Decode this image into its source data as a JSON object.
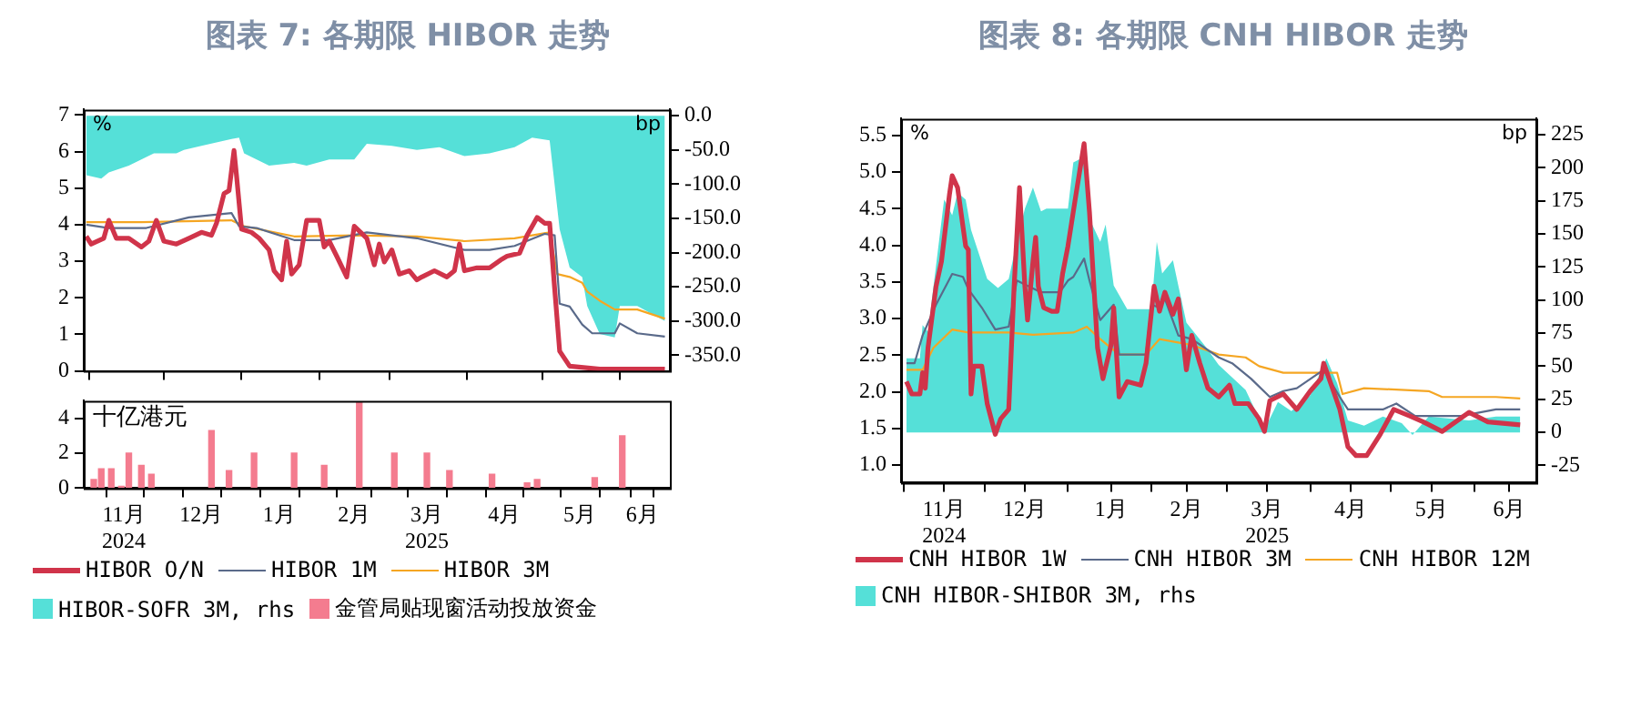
{
  "chart_data": [
    {
      "type": "line",
      "title": "图表 7:  各期限 HIBOR 走势",
      "ylabel": "%",
      "y2label": "bp",
      "xlim": [
        "2024-10-30",
        "2025-06-21"
      ],
      "xticks": [
        "2024-11-01",
        "2024-12-01",
        "2025-01-01",
        "2025-02-01",
        "2025-03-01",
        "2025-04-01",
        "2025-05-01",
        "2025-06-01"
      ],
      "ylim": [
        0,
        7.15
      ],
      "yticks": [
        0,
        1,
        2,
        3,
        4,
        5,
        6,
        7
      ],
      "y2lim": [
        -373,
        9
      ],
      "y2ticks": [
        {
          "value": 0,
          "label": "0.0"
        },
        {
          "value": -50,
          "label": "-50.0"
        },
        {
          "value": -100,
          "label": "-100.0"
        },
        {
          "value": -150,
          "label": "-150.0"
        },
        {
          "value": -200,
          "label": "-200.0"
        },
        {
          "value": -250,
          "label": "-250.0"
        },
        {
          "value": -300,
          "label": "-300.0"
        },
        {
          "value": -350,
          "label": "-350.0"
        }
      ],
      "tick_labels": "y",
      "legend": "bottom",
      "grid": false,
      "marker": "none",
      "series": [
        {
          "name": "HIBOR O/N",
          "color": "#d0344a",
          "x": [
            "2024-10-31",
            "2024-11-02",
            "2024-11-07",
            "2024-11-09",
            "2024-11-12",
            "2024-11-17",
            "2024-11-22",
            "2024-11-25",
            "2024-11-28",
            "2024-12-01",
            "2024-12-06",
            "2024-12-11",
            "2024-12-16",
            "2024-12-20",
            "2024-12-22",
            "2024-12-25",
            "2024-12-27",
            "2024-12-29",
            "2024-12-30",
            "2025-01-01",
            "2025-01-05",
            "2025-01-08",
            "2025-01-12",
            "2025-01-14",
            "2025-01-17",
            "2025-01-19",
            "2025-01-21",
            "2025-01-24",
            "2025-01-27",
            "2025-02-01",
            "2025-02-03",
            "2025-02-05",
            "2025-02-08",
            "2025-02-12",
            "2025-02-15",
            "2025-02-20",
            "2025-02-23",
            "2025-02-25",
            "2025-02-27",
            "2025-03-02",
            "2025-03-05",
            "2025-03-09",
            "2025-03-12",
            "2025-03-14",
            "2025-03-19",
            "2025-03-24",
            "2025-03-27",
            "2025-03-29",
            "2025-03-31",
            "2025-04-05",
            "2025-04-10",
            "2025-04-15",
            "2025-04-17",
            "2025-04-22",
            "2025-04-25",
            "2025-04-29",
            "2025-05-02",
            "2025-05-04",
            "2025-05-06",
            "2025-05-08",
            "2025-05-12",
            "2025-05-24",
            "2025-06-19"
          ],
          "values": [
            3.68,
            3.47,
            3.63,
            4.12,
            3.63,
            3.63,
            3.39,
            3.55,
            4.12,
            3.55,
            3.47,
            3.63,
            3.79,
            3.71,
            4.04,
            4.85,
            4.93,
            6.03,
            5.34,
            3.88,
            3.79,
            3.63,
            3.31,
            2.74,
            2.49,
            3.55,
            2.65,
            2.9,
            4.12,
            4.12,
            3.39,
            3.55,
            3.14,
            2.57,
            3.96,
            3.63,
            2.9,
            3.47,
            2.98,
            3.31,
            2.65,
            2.74,
            2.49,
            2.57,
            2.74,
            2.57,
            2.74,
            3.47,
            2.74,
            2.82,
            2.82,
            3.06,
            3.14,
            3.22,
            3.71,
            4.2,
            4.04,
            4.04,
            2.25,
            0.54,
            0.13,
            0.05,
            0.05
          ]
        },
        {
          "name": "HIBOR 1M",
          "color": "#5a6a8a",
          "x": [
            "2024-10-31",
            "2024-11-09",
            "2024-11-24",
            "2024-12-11",
            "2024-12-28",
            "2024-12-31",
            "2025-01-07",
            "2025-01-22",
            "2025-02-05",
            "2025-02-20",
            "2025-03-12",
            "2025-03-31",
            "2025-04-10",
            "2025-04-20",
            "2025-05-02",
            "2025-05-06",
            "2025-05-08",
            "2025-05-12",
            "2025-05-17",
            "2025-05-21",
            "2025-05-30",
            "2025-06-01",
            "2025-06-08",
            "2025-06-19"
          ],
          "values": [
            4.0,
            3.91,
            3.91,
            4.2,
            4.32,
            3.96,
            3.91,
            3.58,
            3.58,
            3.79,
            3.63,
            3.31,
            3.31,
            3.42,
            3.75,
            3.71,
            1.84,
            1.76,
            1.27,
            1.03,
            1.03,
            1.3,
            1.03,
            0.94
          ]
        },
        {
          "name": "HIBOR 3M",
          "color": "#f5a623",
          "x": [
            "2024-10-31",
            "2024-11-22",
            "2024-12-28",
            "2025-01-02",
            "2025-01-22",
            "2025-02-15",
            "2025-03-12",
            "2025-03-31",
            "2025-04-20",
            "2025-05-04",
            "2025-05-07",
            "2025-05-12",
            "2025-05-17",
            "2025-05-19",
            "2025-05-24",
            "2025-05-30",
            "2025-06-08",
            "2025-06-19"
          ],
          "values": [
            4.07,
            4.07,
            4.12,
            3.96,
            3.68,
            3.71,
            3.68,
            3.55,
            3.63,
            3.79,
            2.65,
            2.57,
            2.41,
            2.17,
            1.92,
            1.68,
            1.68,
            1.43
          ]
        },
        {
          "name": "HIBOR-SOFR 3M, rhs",
          "type": "area",
          "axis": "y2",
          "color": "#55e0d8",
          "x": [
            "2024-10-31",
            "2024-11-06",
            "2024-11-09",
            "2024-11-17",
            "2024-11-27",
            "2024-12-06",
            "2024-12-09",
            "2024-12-16",
            "2024-12-28",
            "2024-12-31",
            "2025-01-02",
            "2025-01-12",
            "2025-01-22",
            "2025-01-27",
            "2025-02-05",
            "2025-02-15",
            "2025-02-20",
            "2025-03-02",
            "2025-03-12",
            "2025-03-21",
            "2025-03-31",
            "2025-04-10",
            "2025-04-20",
            "2025-04-27",
            "2025-05-04",
            "2025-05-08",
            "2025-05-12",
            "2025-05-17",
            "2025-05-19",
            "2025-05-24",
            "2025-05-30",
            "2025-06-01",
            "2025-06-08",
            "2025-06-17",
            "2025-06-19"
          ],
          "values": [
            -87,
            -92,
            -83,
            -73,
            -55,
            -55,
            -50,
            -44,
            -34,
            -32,
            -55,
            -73,
            -69,
            -73,
            -64,
            -64,
            -41,
            -44,
            -50,
            -46,
            -59,
            -55,
            -46,
            -32,
            -36,
            -166,
            -222,
            -236,
            -278,
            -319,
            -324,
            -278,
            -278,
            -296,
            -300
          ]
        }
      ]
    },
    {
      "type": "bar",
      "ylabel": "十亿港元",
      "xlim": [
        "2024-10-30",
        "2025-06-21"
      ],
      "xticks": [
        {
          "value": "2024-11-01",
          "label": null
        },
        {
          "value": "2024-11-15",
          "label": "11月\n2024"
        },
        {
          "value": "2024-12-01",
          "label": null
        },
        {
          "value": "2024-12-16",
          "label": "12月"
        },
        {
          "value": "2025-01-01",
          "label": null
        },
        {
          "value": "2025-01-16",
          "label": "1月"
        },
        {
          "value": "2025-02-01",
          "label": null
        },
        {
          "value": "2025-02-15",
          "label": "2月"
        },
        {
          "value": "2025-03-01",
          "label": null
        },
        {
          "value": "2025-03-16",
          "label": "3月\n2025"
        },
        {
          "value": "2025-04-01",
          "label": null
        },
        {
          "value": "2025-04-16",
          "label": "4月"
        },
        {
          "value": "2025-05-01",
          "label": null
        },
        {
          "value": "2025-05-16",
          "label": "5月"
        },
        {
          "value": "2025-06-01",
          "label": null
        },
        {
          "value": "2025-06-10",
          "label": "6月"
        }
      ],
      "ylim": [
        0,
        5
      ],
      "yticks": [
        0,
        2,
        4
      ],
      "legend": "bottom",
      "grid": false,
      "series": [
        {
          "name": "金管局贴现窗活动投放资金",
          "color": "#f47c8f",
          "x": [
            "2024-11-03",
            "2024-11-06",
            "2024-11-10",
            "2024-11-14",
            "2024-11-17",
            "2024-11-22",
            "2024-11-26",
            "2024-12-20",
            "2024-12-27",
            "2025-01-06",
            "2025-01-22",
            "2025-02-03",
            "2025-02-17",
            "2025-03-03",
            "2025-03-16",
            "2025-03-25",
            "2025-04-11",
            "2025-04-25",
            "2025-04-29",
            "2025-05-22",
            "2025-06-02"
          ],
          "values": [
            0.5,
            1.1,
            1.1,
            0.1,
            2.0,
            1.3,
            0.8,
            3.3,
            1.0,
            2.0,
            2.0,
            1.3,
            4.9,
            2.0,
            2.0,
            1.0,
            0.8,
            0.3,
            0.5,
            0.6,
            3.0
          ]
        }
      ]
    },
    {
      "type": "line",
      "title": "图表 8:  各期限 CNH HIBOR 走势",
      "ylabel": "%",
      "y2label": "bp",
      "xlim": [
        "2024-10-31",
        "2025-06-24"
      ],
      "xticks": [
        {
          "value": "2024-11-01",
          "label": null
        },
        {
          "value": "2024-11-16",
          "label": "11月\n2024"
        },
        {
          "value": "2024-12-01",
          "label": null
        },
        {
          "value": "2024-12-16",
          "label": "12月"
        },
        {
          "value": "2025-01-01",
          "label": null
        },
        {
          "value": "2025-01-17",
          "label": "1月"
        },
        {
          "value": "2025-02-01",
          "label": null
        },
        {
          "value": "2025-02-14",
          "label": "2月"
        },
        {
          "value": "2025-03-01",
          "label": null
        },
        {
          "value": "2025-03-16",
          "label": "3月\n2025"
        },
        {
          "value": "2025-04-01",
          "label": null
        },
        {
          "value": "2025-04-16",
          "label": "4月"
        },
        {
          "value": "2025-05-01",
          "label": null
        },
        {
          "value": "2025-05-16",
          "label": "5月"
        },
        {
          "value": "2025-06-01",
          "label": null
        },
        {
          "value": "2025-06-14",
          "label": "6月"
        }
      ],
      "ylim": [
        0.76,
        5.73
      ],
      "yticks": [
        {
          "value": 1,
          "label": "1.0"
        },
        {
          "value": 1.5,
          "label": "1.5"
        },
        {
          "value": 2,
          "label": "2.0"
        },
        {
          "value": 2.5,
          "label": "2.5"
        },
        {
          "value": 3,
          "label": "3.0"
        },
        {
          "value": 3.5,
          "label": "3.5"
        },
        {
          "value": 4,
          "label": "4.0"
        },
        {
          "value": 4.5,
          "label": "4.5"
        },
        {
          "value": 5,
          "label": "5.0"
        },
        {
          "value": 5.5,
          "label": "5.5"
        }
      ],
      "y2lim": [
        -38,
        237
      ],
      "y2ticks": [
        -25,
        0,
        25,
        50,
        75,
        100,
        125,
        150,
        175,
        200,
        225
      ],
      "legend": "bottom",
      "grid": false,
      "marker": "none",
      "series": [
        {
          "name": "CNH HIBOR 1W",
          "color": "#d0344a",
          "x": [
            "2024-11-02",
            "2024-11-04",
            "2024-11-07",
            "2024-11-08",
            "2024-11-09",
            "2024-11-10",
            "2024-11-13",
            "2024-11-15",
            "2024-11-18",
            "2024-11-19",
            "2024-11-21",
            "2024-11-24",
            "2024-11-25",
            "2024-11-26",
            "2024-11-27",
            "2024-11-30",
            "2024-12-02",
            "2024-12-05",
            "2024-12-07",
            "2024-12-10",
            "2024-12-12",
            "2024-12-14",
            "2024-12-16",
            "2024-12-17",
            "2024-12-19",
            "2024-12-20",
            "2024-12-21",
            "2024-12-23",
            "2024-12-26",
            "2024-12-28",
            "2024-12-30",
            "2025-01-01",
            "2025-01-04",
            "2025-01-07",
            "2025-01-09",
            "2025-01-12",
            "2025-01-14",
            "2025-01-17",
            "2025-01-18",
            "2025-01-20",
            "2025-01-23",
            "2025-01-28",
            "2025-01-30",
            "2025-02-02",
            "2025-02-04",
            "2025-02-06",
            "2025-02-09",
            "2025-02-11",
            "2025-02-14",
            "2025-02-16",
            "2025-02-19",
            "2025-02-22",
            "2025-02-26",
            "2025-03-02",
            "2025-03-04",
            "2025-03-09",
            "2025-03-13",
            "2025-03-15",
            "2025-03-17",
            "2025-03-22",
            "2025-03-27",
            "2025-04-01",
            "2025-04-05",
            "2025-04-06",
            "2025-04-10",
            "2025-04-12",
            "2025-04-15",
            "2025-04-18",
            "2025-04-22",
            "2025-04-27",
            "2025-05-02",
            "2025-05-08",
            "2025-05-13",
            "2025-05-20",
            "2025-05-30",
            "2025-06-06",
            "2025-06-18"
          ],
          "values": [
            2.14,
            1.97,
            1.97,
            2.26,
            2.05,
            2.6,
            3.44,
            3.78,
            4.7,
            4.95,
            4.79,
            3.99,
            3.94,
            1.97,
            2.35,
            2.35,
            1.84,
            1.42,
            1.63,
            1.76,
            3.44,
            4.79,
            3.44,
            2.98,
            3.78,
            4.11,
            3.44,
            3.15,
            3.1,
            3.1,
            3.61,
            3.99,
            4.7,
            5.39,
            4.45,
            2.6,
            2.18,
            2.64,
            3.15,
            1.93,
            2.14,
            2.09,
            2.39,
            3.44,
            3.1,
            3.36,
            3.06,
            3.27,
            2.3,
            2.77,
            2.39,
            2.05,
            1.93,
            2.09,
            1.84,
            1.84,
            1.63,
            1.46,
            1.88,
            1.97,
            1.76,
            2.01,
            2.18,
            2.39,
            1.97,
            1.76,
            1.25,
            1.13,
            1.13,
            1.42,
            1.76,
            1.67,
            1.59,
            1.46,
            1.72,
            1.59,
            1.55
          ]
        },
        {
          "name": "CNH HIBOR 3M",
          "color": "#5a6a8a",
          "x": [
            "2024-11-02",
            "2024-11-05",
            "2024-11-08",
            "2024-11-13",
            "2024-11-19",
            "2024-11-23",
            "2024-11-25",
            "2024-11-30",
            "2024-12-05",
            "2024-12-10",
            "2024-12-13",
            "2024-12-22",
            "2024-12-29",
            "2025-01-01",
            "2025-01-03",
            "2025-01-07",
            "2025-01-09",
            "2025-01-13",
            "2025-01-18",
            "2025-01-20",
            "2025-01-30",
            "2025-02-01",
            "2025-02-04",
            "2025-02-06",
            "2025-02-11",
            "2025-02-16",
            "2025-02-26",
            "2025-03-03",
            "2025-03-10",
            "2025-03-17",
            "2025-03-22",
            "2025-03-27",
            "2025-04-06",
            "2025-04-12",
            "2025-04-15",
            "2025-04-28",
            "2025-05-03",
            "2025-05-10",
            "2025-05-27",
            "2025-06-09",
            "2025-06-18"
          ],
          "values": [
            2.39,
            2.39,
            2.77,
            3.19,
            3.61,
            3.57,
            3.4,
            3.15,
            2.85,
            2.89,
            3.52,
            3.36,
            3.36,
            3.52,
            3.57,
            3.82,
            3.52,
            2.98,
            3.19,
            2.51,
            2.51,
            3.19,
            3.15,
            3.27,
            2.77,
            2.72,
            2.47,
            2.39,
            2.18,
            1.93,
            2.01,
            2.05,
            2.3,
            1.93,
            1.76,
            1.76,
            1.84,
            1.67,
            1.67,
            1.76,
            1.76
          ]
        },
        {
          "name": "CNH HIBOR 12M",
          "color": "#f5a623",
          "x": [
            "2024-11-02",
            "2024-11-08",
            "2024-11-12",
            "2024-11-19",
            "2024-11-25",
            "2024-12-10",
            "2024-12-19",
            "2025-01-03",
            "2025-01-08",
            "2025-01-13",
            "2025-01-20",
            "2025-01-30",
            "2025-02-04",
            "2025-02-16",
            "2025-02-26",
            "2025-03-08",
            "2025-03-13",
            "2025-03-22",
            "2025-04-11",
            "2025-04-13",
            "2025-04-21",
            "2025-05-15",
            "2025-05-20",
            "2025-06-09",
            "2025-06-18"
          ],
          "values": [
            2.3,
            2.3,
            2.6,
            2.85,
            2.81,
            2.81,
            2.78,
            2.81,
            2.89,
            2.72,
            2.51,
            2.51,
            2.72,
            2.64,
            2.51,
            2.47,
            2.35,
            2.26,
            2.26,
            1.97,
            2.05,
            2.01,
            1.93,
            1.93,
            1.91
          ]
        },
        {
          "name": "CNH HIBOR-SHIBOR 3M, rhs",
          "type": "area",
          "axis": "y2",
          "color": "#55e0d8",
          "x": [
            "2024-11-02",
            "2024-11-07",
            "2024-11-08",
            "2024-11-10",
            "2024-11-16",
            "2024-11-19",
            "2024-11-21",
            "2024-11-24",
            "2024-11-26",
            "2024-12-02",
            "2024-12-06",
            "2024-12-10",
            "2024-12-13",
            "2024-12-16",
            "2024-12-19",
            "2024-12-22",
            "2024-12-24",
            "2025-01-01",
            "2025-01-03",
            "2025-01-07",
            "2025-01-10",
            "2025-01-13",
            "2025-01-15",
            "2025-01-18",
            "2025-01-23",
            "2025-01-30",
            "2025-02-01",
            "2025-02-03",
            "2025-02-05",
            "2025-02-09",
            "2025-02-11",
            "2025-02-14",
            "2025-02-21",
            "2025-02-26",
            "2025-03-08",
            "2025-03-15",
            "2025-03-20",
            "2025-03-25",
            "2025-04-01",
            "2025-04-07",
            "2025-04-11",
            "2025-04-15",
            "2025-04-21",
            "2025-04-28",
            "2025-05-05",
            "2025-05-09",
            "2025-05-15",
            "2025-05-30",
            "2025-06-09",
            "2025-06-18"
          ],
          "values": [
            56,
            56,
            81,
            76,
            176,
            164,
            181,
            176,
            153,
            116,
            109,
            116,
            144,
            169,
            185,
            167,
            169,
            169,
            204,
            208,
            157,
            144,
            157,
            111,
            93,
            93,
            93,
            144,
            120,
            130,
            111,
            83,
            65,
            51,
            32,
            2,
            23,
            16,
            28,
            56,
            37,
            9,
            5,
            12,
            7,
            -2,
            12,
            9,
            12,
            12
          ]
        }
      ]
    }
  ]
}
